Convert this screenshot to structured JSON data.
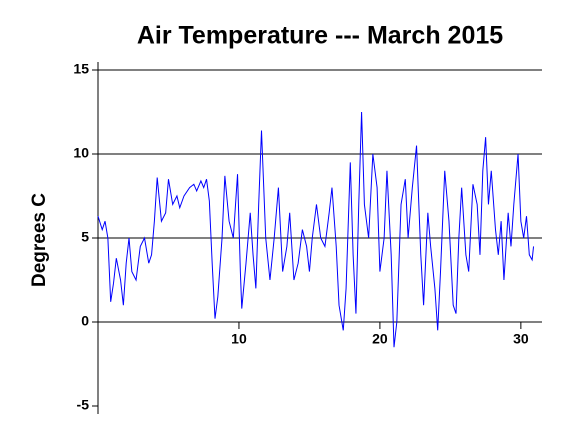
{
  "chart_data": {
    "type": "line",
    "title": "Air Temperature --- March 2015",
    "y_label": "Degrees C",
    "xlim": [
      0,
      31.5
    ],
    "xticks": [
      10,
      20,
      30
    ],
    "ylim": [
      -5,
      15
    ],
    "yticks": [
      -5,
      0,
      5,
      10,
      15
    ],
    "grid": true,
    "series": [
      {
        "color": "#0000ff",
        "x": [
          0,
          0.3,
          0.5,
          0.7,
          0.9,
          1.1,
          1.3,
          1.6,
          1.8,
          2,
          2.2,
          2.4,
          2.7,
          3,
          3.3,
          3.6,
          3.8,
          4,
          4.2,
          4.5,
          4.8,
          5,
          5.3,
          5.6,
          5.8,
          6.1,
          6.5,
          6.8,
          7,
          7.3,
          7.5,
          7.7,
          7.9,
          8.1,
          8.3,
          8.5,
          8.8,
          9,
          9.3,
          9.6,
          9.9,
          10.1,
          10.2,
          10.5,
          10.8,
          11,
          11.2,
          11.4,
          11.6,
          11.9,
          12.2,
          12.5,
          12.8,
          13.1,
          13.4,
          13.6,
          13.9,
          14.2,
          14.5,
          14.8,
          15,
          15.2,
          15.5,
          15.8,
          16.1,
          16.4,
          16.6,
          16.9,
          17.1,
          17.4,
          17.6,
          17.9,
          18.1,
          18.3,
          18.5,
          18.7,
          18.9,
          19.2,
          19.5,
          19.8,
          20,
          20.3,
          20.5,
          20.8,
          21,
          21.2,
          21.5,
          21.8,
          22,
          22.3,
          22.6,
          22.9,
          23.1,
          23.4,
          23.6,
          23.9,
          24.1,
          24.3,
          24.6,
          24.9,
          25.2,
          25.4,
          25.6,
          25.8,
          26.1,
          26.3,
          26.6,
          26.9,
          27.1,
          27.3,
          27.5,
          27.7,
          27.9,
          28.2,
          28.4,
          28.6,
          28.8,
          29.1,
          29.3,
          29.5,
          29.8,
          30,
          30.2,
          30.4,
          30.6,
          30.8,
          30.9
        ],
        "values": [
          6.3,
          5.5,
          6,
          5,
          1.2,
          2.3,
          3.8,
          2.5,
          1,
          3.5,
          5,
          3,
          2.5,
          4.5,
          5,
          3.5,
          4,
          6,
          8.6,
          6,
          6.5,
          8.5,
          7,
          7.5,
          6.8,
          7.5,
          8,
          8.2,
          7.8,
          8.4,
          8,
          8.5,
          7.2,
          3.5,
          0.2,
          1.5,
          5,
          8.7,
          6,
          5,
          8.8,
          3,
          0.8,
          3.5,
          6.5,
          4,
          2,
          7,
          11.4,
          5,
          2.5,
          5,
          8,
          3,
          4.5,
          6.5,
          2.5,
          3.5,
          5.5,
          4.5,
          3,
          5,
          7,
          5,
          4.5,
          6.5,
          8,
          4.5,
          1,
          -0.5,
          2,
          9.5,
          4,
          0.5,
          7,
          12.5,
          7,
          5,
          10,
          8,
          3,
          5,
          9,
          4,
          -1.5,
          0,
          7,
          8.5,
          5,
          8,
          10.5,
          4,
          1,
          6.5,
          4.5,
          2,
          -0.5,
          3,
          9,
          6,
          1,
          0.5,
          5,
          8,
          4,
          3,
          8.2,
          7,
          4,
          9,
          11,
          7,
          9,
          5.5,
          4,
          6,
          2.5,
          6.5,
          4.5,
          7,
          10,
          6,
          5,
          6.3,
          4,
          3.7,
          4.5
        ]
      }
    ]
  }
}
